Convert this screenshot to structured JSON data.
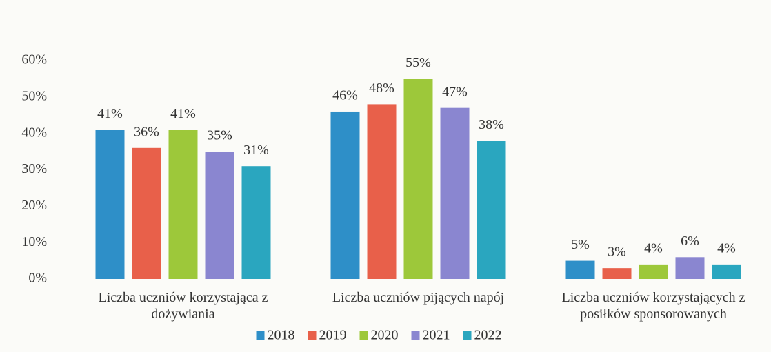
{
  "chart_data": {
    "type": "bar",
    "categories": [
      "Liczba uczniów korzystająca z dożywiania",
      "Liczba uczniów pijących napój",
      "Liczba uczniów korzystających z posiłków sponsorowanych"
    ],
    "series": [
      {
        "name": "2018",
        "color": "#2e8fc8",
        "values": [
          41,
          46,
          5
        ],
        "value_labels": [
          "41%",
          "46%",
          "5%"
        ]
      },
      {
        "name": "2019",
        "color": "#e8604a",
        "values": [
          36,
          48,
          3
        ],
        "value_labels": [
          "36%",
          "48%",
          "3%"
        ]
      },
      {
        "name": "2020",
        "color": "#9dc83a",
        "values": [
          41,
          55,
          4
        ],
        "value_labels": [
          "41%",
          "55%",
          "4%"
        ]
      },
      {
        "name": "2021",
        "color": "#8a86d0",
        "values": [
          35,
          47,
          6
        ],
        "value_labels": [
          "35%",
          "47%",
          "6%"
        ]
      },
      {
        "name": "2022",
        "color": "#2aa6bf",
        "values": [
          31,
          38,
          4
        ],
        "value_labels": [
          "31%",
          "38%",
          "4%"
        ]
      }
    ],
    "ylim": [
      0,
      60
    ],
    "yticks": [
      {
        "value": 0,
        "label": "0%"
      },
      {
        "value": 10,
        "label": "10%"
      },
      {
        "value": 20,
        "label": "20%"
      },
      {
        "value": 30,
        "label": "30%"
      },
      {
        "value": 40,
        "label": "40%"
      },
      {
        "value": 50,
        "label": "50%"
      },
      {
        "value": 60,
        "label": "60%"
      }
    ],
    "grid": false,
    "legend": "bottom"
  }
}
